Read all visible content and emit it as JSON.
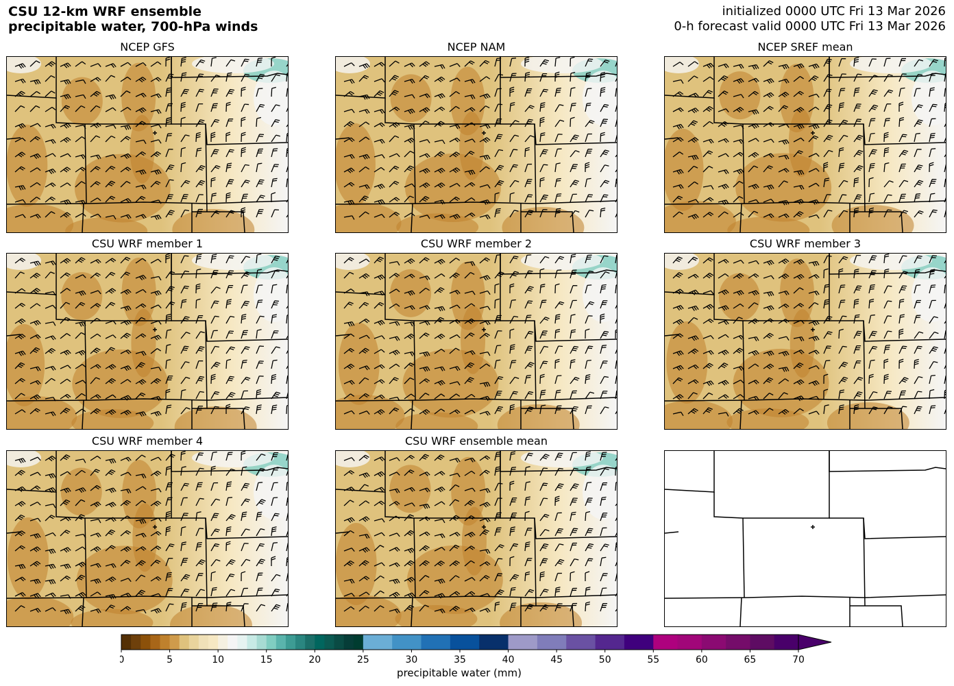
{
  "header": {
    "title_line1": "CSU 12-km WRF ensemble",
    "title_line2": "precipitable water, 700-hPa winds",
    "init_line1": "initialized 0000 UTC Fri 13 Mar 2026",
    "init_line2": "0-h forecast valid 0000 UTC Fri 13 Mar 2026"
  },
  "panels": [
    {
      "title": "NCEP GFS",
      "empty": false
    },
    {
      "title": "NCEP NAM",
      "empty": false
    },
    {
      "title": "NCEP SREF mean",
      "empty": false
    },
    {
      "title": "CSU WRF member 1",
      "empty": false
    },
    {
      "title": "CSU WRF member 2",
      "empty": false
    },
    {
      "title": "CSU WRF member 3",
      "empty": false
    },
    {
      "title": "CSU WRF member 4",
      "empty": false
    },
    {
      "title": "CSU WRF ensemble mean",
      "empty": false
    },
    {
      "title": "",
      "empty": true
    }
  ],
  "colorbar": {
    "label": "precipitable water (mm)",
    "min": 0,
    "max": 70,
    "extend": "max",
    "ticks": [
      0,
      5,
      10,
      15,
      20,
      25,
      30,
      35,
      40,
      45,
      50,
      55,
      60,
      65,
      70
    ],
    "segments": [
      {
        "from": 0,
        "to": 25,
        "colors": [
          "#543005",
          "#6e400b",
          "#8c510a",
          "#a86618",
          "#bf812d",
          "#cf9b4b",
          "#dfc27d",
          "#e9d49d",
          "#f0e1b8",
          "#f6e8c3",
          "#f5f0e1",
          "#f5f5f5",
          "#e6f3f1",
          "#c7eae5",
          "#a7dbd3",
          "#80cdc1",
          "#5ab4ac",
          "#3d9c94",
          "#2a8680",
          "#1b6f69",
          "#01665e",
          "#0b5a52",
          "#0a4b44",
          "#063d38",
          "#003c30"
        ]
      },
      {
        "from": 25,
        "to": 40,
        "colors": [
          "#6baed6",
          "#4292c6",
          "#2171b5",
          "#08519c",
          "#08306b"
        ]
      },
      {
        "from": 40,
        "to": 55,
        "colors": [
          "#9e9ac8",
          "#807dba",
          "#6a51a3",
          "#54278f",
          "#3f007d"
        ]
      },
      {
        "from": 55,
        "to": 70,
        "colors": [
          "#ae017e",
          "#a10679",
          "#8b0a72",
          "#750c6a",
          "#5e0c63",
          "#49006a"
        ]
      }
    ]
  },
  "map": {
    "city_marker": "city-marker",
    "fill_colors": {
      "dry": "#bf812d",
      "mid": "#dfc27d",
      "light": "#f6e8c3",
      "white": "#f5f5f5",
      "moist": "#80cdc1"
    }
  }
}
